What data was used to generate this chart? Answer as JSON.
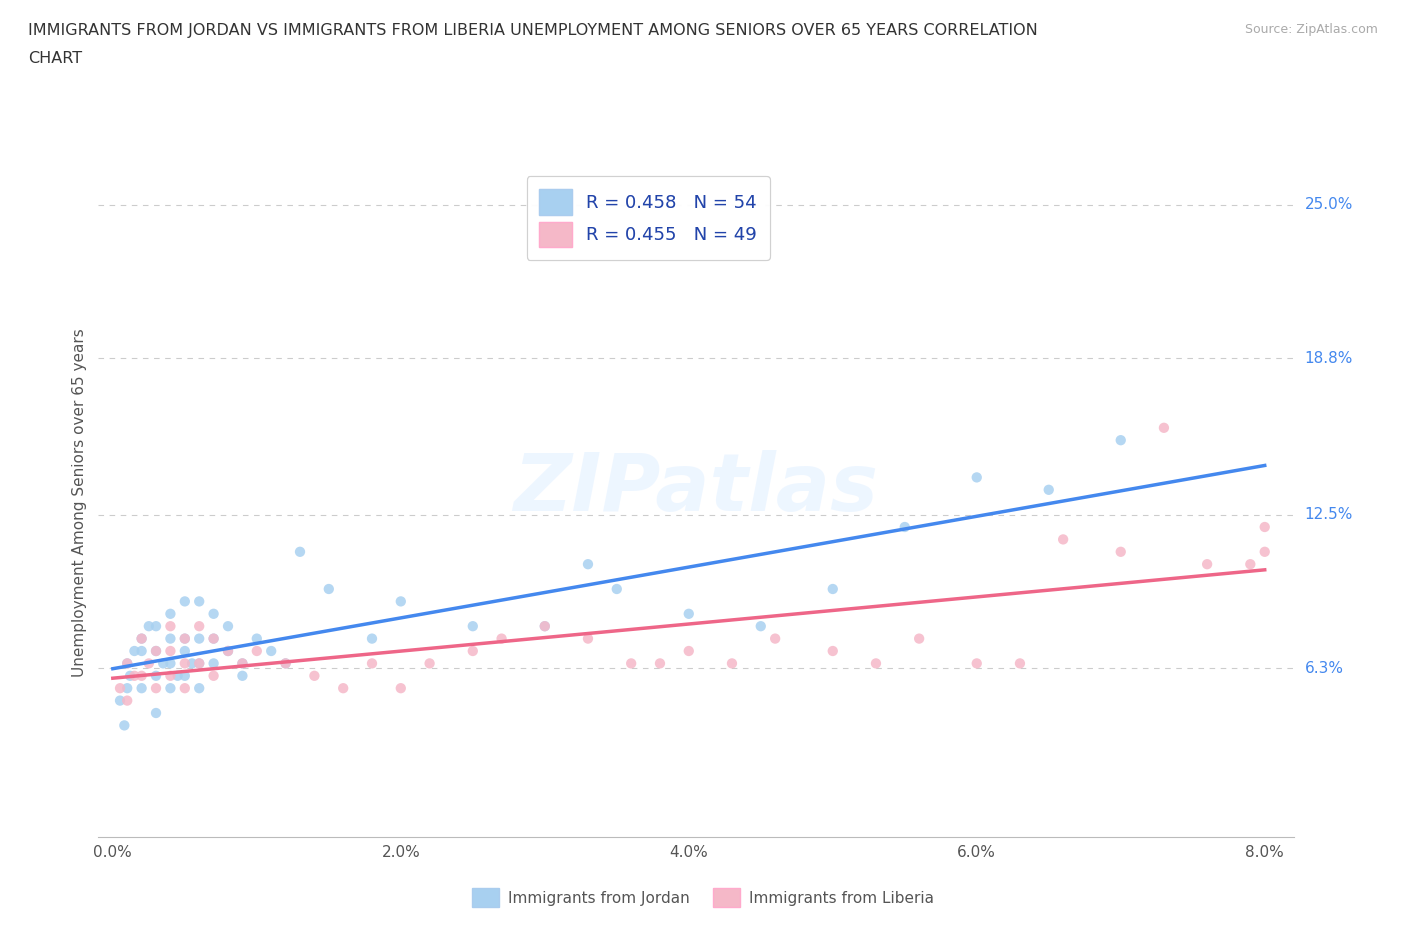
{
  "title_line1": "IMMIGRANTS FROM JORDAN VS IMMIGRANTS FROM LIBERIA UNEMPLOYMENT AMONG SENIORS OVER 65 YEARS CORRELATION",
  "title_line2": "CHART",
  "source_text": "Source: ZipAtlas.com",
  "ylabel": "Unemployment Among Seniors over 65 years",
  "watermark": "ZIPatlas",
  "jordan_color": "#a8d0f0",
  "liberia_color": "#f5b8c8",
  "jordan_line_color": "#4488ee",
  "liberia_line_color": "#ee6688",
  "legend_text_color": "#2244aa",
  "jordan_R": 0.458,
  "jordan_N": 54,
  "liberia_R": 0.455,
  "liberia_N": 49,
  "xlim": [
    -0.001,
    0.082
  ],
  "ylim": [
    -0.005,
    0.265
  ],
  "xticks": [
    0.0,
    0.02,
    0.04,
    0.06,
    0.08
  ],
  "xtick_labels": [
    "0.0%",
    "2.0%",
    "4.0%",
    "6.0%",
    "8.0%"
  ],
  "ytick_labels_right": [
    "25.0%",
    "18.8%",
    "12.5%",
    "6.3%"
  ],
  "ytick_vals_right": [
    0.25,
    0.188,
    0.125,
    0.063
  ],
  "background_color": "#ffffff",
  "grid_color": "#cccccc",
  "jordan_x": [
    0.0005,
    0.0008,
    0.001,
    0.001,
    0.0012,
    0.0015,
    0.002,
    0.002,
    0.002,
    0.0025,
    0.003,
    0.003,
    0.003,
    0.003,
    0.0035,
    0.004,
    0.004,
    0.004,
    0.004,
    0.0045,
    0.005,
    0.005,
    0.005,
    0.005,
    0.0055,
    0.006,
    0.006,
    0.006,
    0.006,
    0.007,
    0.007,
    0.007,
    0.008,
    0.008,
    0.009,
    0.009,
    0.01,
    0.011,
    0.012,
    0.013,
    0.015,
    0.018,
    0.02,
    0.025,
    0.03,
    0.033,
    0.035,
    0.04,
    0.045,
    0.05,
    0.055,
    0.06,
    0.065,
    0.07
  ],
  "jordan_y": [
    0.05,
    0.04,
    0.055,
    0.065,
    0.06,
    0.07,
    0.055,
    0.07,
    0.075,
    0.08,
    0.045,
    0.06,
    0.07,
    0.08,
    0.065,
    0.055,
    0.065,
    0.075,
    0.085,
    0.06,
    0.06,
    0.07,
    0.075,
    0.09,
    0.065,
    0.055,
    0.065,
    0.075,
    0.09,
    0.065,
    0.075,
    0.085,
    0.07,
    0.08,
    0.065,
    0.06,
    0.075,
    0.07,
    0.065,
    0.11,
    0.095,
    0.075,
    0.09,
    0.08,
    0.08,
    0.105,
    0.095,
    0.085,
    0.08,
    0.095,
    0.12,
    0.14,
    0.135,
    0.155
  ],
  "liberia_x": [
    0.0005,
    0.001,
    0.001,
    0.0015,
    0.002,
    0.002,
    0.0025,
    0.003,
    0.003,
    0.004,
    0.004,
    0.004,
    0.005,
    0.005,
    0.005,
    0.006,
    0.006,
    0.007,
    0.007,
    0.008,
    0.009,
    0.01,
    0.012,
    0.014,
    0.016,
    0.018,
    0.02,
    0.022,
    0.025,
    0.027,
    0.03,
    0.033,
    0.036,
    0.038,
    0.04,
    0.043,
    0.046,
    0.05,
    0.053,
    0.056,
    0.06,
    0.063,
    0.066,
    0.07,
    0.073,
    0.076,
    0.079,
    0.08,
    0.08
  ],
  "liberia_y": [
    0.055,
    0.05,
    0.065,
    0.06,
    0.06,
    0.075,
    0.065,
    0.055,
    0.07,
    0.06,
    0.07,
    0.08,
    0.055,
    0.065,
    0.075,
    0.065,
    0.08,
    0.06,
    0.075,
    0.07,
    0.065,
    0.07,
    0.065,
    0.06,
    0.055,
    0.065,
    0.055,
    0.065,
    0.07,
    0.075,
    0.08,
    0.075,
    0.065,
    0.065,
    0.07,
    0.065,
    0.075,
    0.07,
    0.065,
    0.075,
    0.065,
    0.065,
    0.115,
    0.11,
    0.16,
    0.105,
    0.105,
    0.11,
    0.12
  ]
}
